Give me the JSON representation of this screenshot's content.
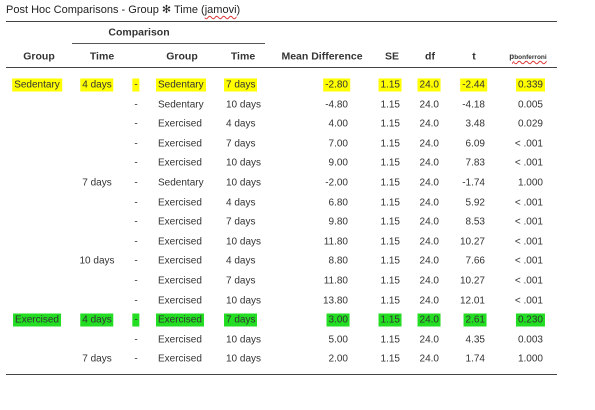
{
  "title": {
    "prefix": "Post Hoc Comparisons - Group ✻ Time (",
    "app": "jamovi",
    "suffix": ")"
  },
  "header": {
    "comparison": "Comparison",
    "group1": "Group",
    "time1": "Time",
    "dash": "",
    "group2": "Group",
    "time2": "Time",
    "mean_difference": "Mean Difference",
    "se": "SE",
    "df": "df",
    "t": "t",
    "p_label": "p",
    "p_sub": "bonferroni"
  },
  "highlight_colors": {
    "yellow": "#ffff00",
    "green": "#22dd22"
  },
  "rows": [
    {
      "group1": "Sedentary",
      "time1": "4 days",
      "dash": "-",
      "group2": "Sedentary",
      "time2": "7 days",
      "md": "-2.80",
      "se": "1.15",
      "df": "24.0",
      "t": "-2.44",
      "p": "0.339",
      "highlight": "yellow"
    },
    {
      "group1": "",
      "time1": "",
      "dash": "-",
      "group2": "Sedentary",
      "time2": "10 days",
      "md": "-4.80",
      "se": "1.15",
      "df": "24.0",
      "t": "-4.18",
      "p": "0.005",
      "highlight": ""
    },
    {
      "group1": "",
      "time1": "",
      "dash": "-",
      "group2": "Exercised",
      "time2": "4 days",
      "md": "4.00",
      "se": "1.15",
      "df": "24.0",
      "t": "3.48",
      "p": "0.029",
      "highlight": ""
    },
    {
      "group1": "",
      "time1": "",
      "dash": "-",
      "group2": "Exercised",
      "time2": "7 days",
      "md": "7.00",
      "se": "1.15",
      "df": "24.0",
      "t": "6.09",
      "p": "< .001",
      "highlight": ""
    },
    {
      "group1": "",
      "time1": "",
      "dash": "-",
      "group2": "Exercised",
      "time2": "10 days",
      "md": "9.00",
      "se": "1.15",
      "df": "24.0",
      "t": "7.83",
      "p": "< .001",
      "highlight": ""
    },
    {
      "group1": "",
      "time1": "7 days",
      "dash": "-",
      "group2": "Sedentary",
      "time2": "10 days",
      "md": "-2.00",
      "se": "1.15",
      "df": "24.0",
      "t": "-1.74",
      "p": "1.000",
      "highlight": ""
    },
    {
      "group1": "",
      "time1": "",
      "dash": "-",
      "group2": "Exercised",
      "time2": "4 days",
      "md": "6.80",
      "se": "1.15",
      "df": "24.0",
      "t": "5.92",
      "p": "< .001",
      "highlight": ""
    },
    {
      "group1": "",
      "time1": "",
      "dash": "-",
      "group2": "Exercised",
      "time2": "7 days",
      "md": "9.80",
      "se": "1.15",
      "df": "24.0",
      "t": "8.53",
      "p": "< .001",
      "highlight": ""
    },
    {
      "group1": "",
      "time1": "",
      "dash": "-",
      "group2": "Exercised",
      "time2": "10 days",
      "md": "11.80",
      "se": "1.15",
      "df": "24.0",
      "t": "10.27",
      "p": "< .001",
      "highlight": ""
    },
    {
      "group1": "",
      "time1": "10 days",
      "dash": "-",
      "group2": "Exercised",
      "time2": "4 days",
      "md": "8.80",
      "se": "1.15",
      "df": "24.0",
      "t": "7.66",
      "p": "< .001",
      "highlight": ""
    },
    {
      "group1": "",
      "time1": "",
      "dash": "-",
      "group2": "Exercised",
      "time2": "7 days",
      "md": "11.80",
      "se": "1.15",
      "df": "24.0",
      "t": "10.27",
      "p": "< .001",
      "highlight": ""
    },
    {
      "group1": "",
      "time1": "",
      "dash": "-",
      "group2": "Exercised",
      "time2": "10 days",
      "md": "13.80",
      "se": "1.15",
      "df": "24.0",
      "t": "12.01",
      "p": "< .001",
      "highlight": ""
    },
    {
      "group1": "Exercised",
      "time1": "4 days",
      "dash": "-",
      "group2": "Exercised",
      "time2": "7 days",
      "md": "3.00",
      "se": "1.15",
      "df": "24.0",
      "t": "2.61",
      "p": "0.230",
      "highlight": "green"
    },
    {
      "group1": "",
      "time1": "",
      "dash": "-",
      "group2": "Exercised",
      "time2": "10 days",
      "md": "5.00",
      "se": "1.15",
      "df": "24.0",
      "t": "4.35",
      "p": "0.003",
      "highlight": ""
    },
    {
      "group1": "",
      "time1": "7 days",
      "dash": "-",
      "group2": "Exercised",
      "time2": "10 days",
      "md": "2.00",
      "se": "1.15",
      "df": "24.0",
      "t": "1.74",
      "p": "1.000",
      "highlight": ""
    }
  ]
}
